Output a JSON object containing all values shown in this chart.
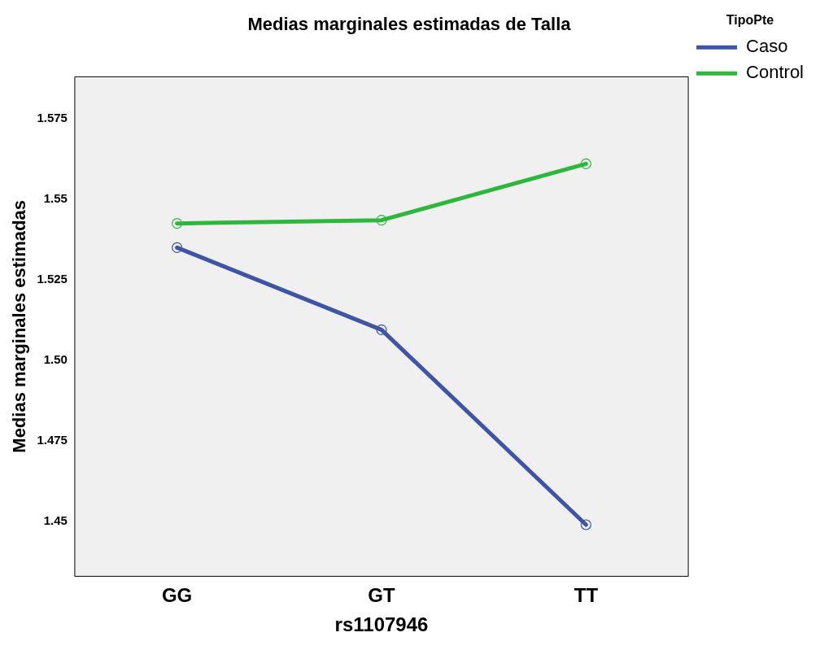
{
  "chart_data": {
    "type": "line",
    "title": "Medias marginales estimadas de Talla",
    "xlabel": "rs1107946",
    "ylabel": "Medias marginales estimadas",
    "legend_title": "TipoPte",
    "categories": [
      "GG",
      "GT",
      "TT"
    ],
    "series": [
      {
        "name": "Caso",
        "color": "#3f54a8",
        "values": [
          1.535,
          1.5095,
          1.449
        ]
      },
      {
        "name": "Control",
        "color": "#2db83d",
        "values": [
          1.5425,
          1.5435,
          1.561
        ]
      }
    ],
    "ylim": [
      1.433,
      1.588
    ],
    "yticks": [
      1.45,
      1.475,
      {
        "value": 1.5,
        "label": "1.50"
      },
      1.525,
      1.55,
      1.575
    ],
    "grid": false,
    "legend": "right",
    "marker": "circle",
    "line_style": "solid"
  }
}
